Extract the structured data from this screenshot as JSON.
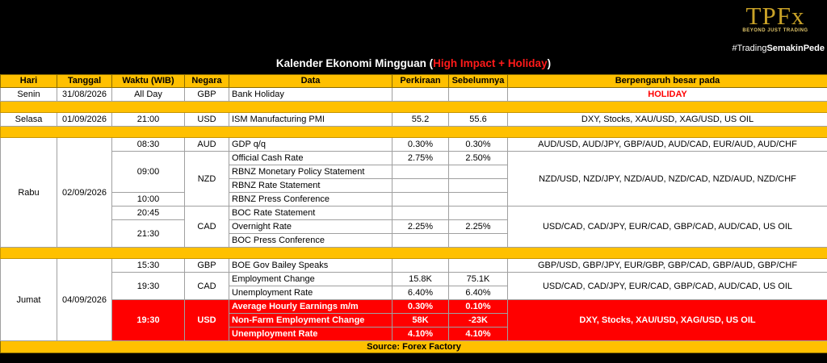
{
  "brand": {
    "logo": "TPFx",
    "tagline": "BEYOND JUST TRADING"
  },
  "hashtag": {
    "prefix": "#Trading",
    "bold": "SemakinPede"
  },
  "title": {
    "main": "Kalender Ekonomi Mingguan (",
    "highlight": "High Impact + Holiday",
    "end": ")"
  },
  "columns": [
    "Hari",
    "Tanggal",
    "Waktu (WIB)",
    "Negara",
    "Data",
    "Perkiraan",
    "Sebelumnya",
    "Berpengaruh besar pada"
  ],
  "senin": {
    "day": "Senin",
    "date": "31/08/2026",
    "time": "All Day",
    "country": "GBP",
    "data": "Bank Holiday",
    "impact": "HOLIDAY"
  },
  "selasa": {
    "day": "Selasa",
    "date": "01/09/2026",
    "time": "21:00",
    "country": "USD",
    "data": "ISM Manufacturing PMI",
    "forecast": "55.2",
    "previous": "55.6",
    "impact": "DXY, Stocks, XAU/USD, XAG/USD, US OIL"
  },
  "rabu": {
    "day": "Rabu",
    "date": "02/09/2026",
    "aud": {
      "time": "08:30",
      "country": "AUD",
      "data": "GDP q/q",
      "forecast": "0.30%",
      "previous": "0.30%",
      "impact": "AUD/USD, AUD/JPY, GBP/AUD, AUD/CAD, EUR/AUD, AUD/CHF"
    },
    "nzd": {
      "time1": "09:00",
      "time2": "10:00",
      "country": "NZD",
      "rows": [
        {
          "data": "Official Cash Rate",
          "forecast": "2.75%",
          "previous": "2.50%"
        },
        {
          "data": "RBNZ Monetary Policy Statement",
          "forecast": "",
          "previous": ""
        },
        {
          "data": "RBNZ Rate Statement",
          "forecast": "",
          "previous": ""
        },
        {
          "data": "RBNZ Press Conference",
          "forecast": "",
          "previous": ""
        }
      ],
      "impact": "NZD/USD, NZD/JPY, NZD/AUD, NZD/CAD, NZD/AUD, NZD/CHF"
    },
    "cad": {
      "time1": "20:45",
      "time2": "21:30",
      "country": "CAD",
      "rows": [
        {
          "data": "BOC Rate Statement",
          "forecast": "",
          "previous": ""
        },
        {
          "data": "Overnight Rate",
          "forecast": "2.25%",
          "previous": "2.25%"
        },
        {
          "data": "BOC Press Conference",
          "forecast": "",
          "previous": ""
        }
      ],
      "impact": "USD/CAD, CAD/JPY, EUR/CAD, GBP/CAD, AUD/CAD, US OIL"
    }
  },
  "jumat": {
    "day": "Jumat",
    "date": "04/09/2026",
    "gbp": {
      "time": "15:30",
      "country": "GBP",
      "data": "BOE Gov Bailey Speaks",
      "impact": "GBP/USD, GBP/JPY, EUR/GBP, GBP/CAD, GBP/AUD, GBP/CHF"
    },
    "cad": {
      "time": "19:30",
      "country": "CAD",
      "rows": [
        {
          "data": "Employment Change",
          "forecast": "15.8K",
          "previous": "75.1K"
        },
        {
          "data": "Unemployment Rate",
          "forecast": "6.40%",
          "previous": "6.40%"
        }
      ],
      "impact": "USD/CAD, CAD/JPY, EUR/CAD, GBP/CAD, AUD/CAD, US OIL"
    },
    "usd": {
      "time": "19:30",
      "country": "USD",
      "rows": [
        {
          "data": "Average Hourly Earnings m/m",
          "forecast": "0.30%",
          "previous": "0.10%"
        },
        {
          "data": "Non-Farm Employment Change",
          "forecast": "58K",
          "previous": "-23K"
        },
        {
          "data": "Unemployment Rate",
          "forecast": "4.10%",
          "previous": "4.10%"
        }
      ],
      "impact": "DXY, Stocks, XAU/USD, XAG/USD, US OIL"
    }
  },
  "source": "Source: Forex Factory"
}
